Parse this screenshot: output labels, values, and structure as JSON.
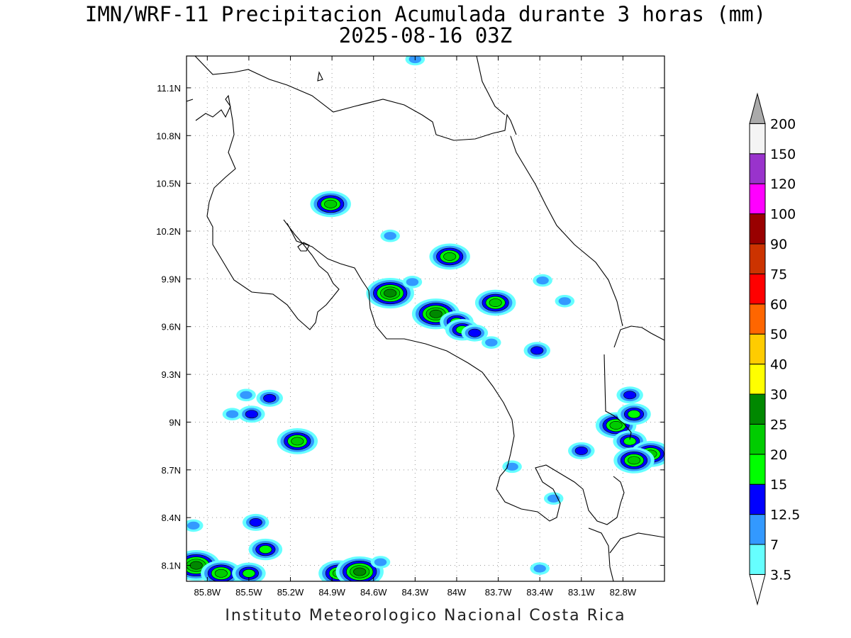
{
  "title": {
    "line1": "IMN/WRF-11 Precipitacion Acumulada durante 3 horas (mm)",
    "line2": "2025-08-16 03Z"
  },
  "footer": "Instituto Meteorologico Nacional Costa Rica",
  "axes": {
    "lon_ticks": [
      "85.8W",
      "85.5W",
      "85.2W",
      "84.9W",
      "84.6W",
      "84.3W",
      "84W",
      "83.7W",
      "83.4W",
      "83.1W",
      "82.8W"
    ],
    "lat_ticks": [
      "11.1N",
      "10.8N",
      "10.5N",
      "10.2N",
      "9.9N",
      "9.6N",
      "9.3N",
      "9N",
      "8.7N",
      "8.4N",
      "8.1N"
    ],
    "lon_values": [
      -85.8,
      -85.5,
      -85.2,
      -84.9,
      -84.6,
      -84.3,
      -84.0,
      -83.7,
      -83.4,
      -83.1,
      -82.8
    ],
    "lat_values": [
      11.1,
      10.8,
      10.5,
      10.2,
      9.9,
      9.6,
      9.3,
      9.0,
      8.7,
      8.4,
      8.1
    ],
    "lon_range": [
      -85.95,
      -82.5
    ],
    "lat_range": [
      8.0,
      11.3
    ],
    "grid": true
  },
  "legend": {
    "levels": [
      "3.5",
      "7",
      "12.5",
      "15",
      "20",
      "25",
      "30",
      "40",
      "50",
      "60",
      "75",
      "90",
      "100",
      "120",
      "150",
      "200"
    ],
    "colors": [
      "#66ffff",
      "#3399ff",
      "#0000ff",
      "#00ff00",
      "#00cc00",
      "#008800",
      "#ffff00",
      "#ffcc00",
      "#ff6600",
      "#ff0000",
      "#cc3300",
      "#990000",
      "#ff00ff",
      "#9933cc",
      "#f4f4f4",
      "#aaaaaa"
    ]
  },
  "precip_cells": [
    {
      "lon": -84.91,
      "lat": 10.37,
      "level": 4
    },
    {
      "lon": -84.05,
      "lat": 10.04,
      "level": 4
    },
    {
      "lon": -84.48,
      "lat": 9.81,
      "level": 5
    },
    {
      "lon": -84.15,
      "lat": 9.68,
      "level": 5
    },
    {
      "lon": -84.0,
      "lat": 9.63,
      "level": 3
    },
    {
      "lon": -83.96,
      "lat": 9.58,
      "level": 3
    },
    {
      "lon": -83.72,
      "lat": 9.75,
      "level": 4
    },
    {
      "lon": -83.42,
      "lat": 9.45,
      "level": 2
    },
    {
      "lon": -84.48,
      "lat": 10.17,
      "level": 1
    },
    {
      "lon": -84.32,
      "lat": 9.88,
      "level": 1
    },
    {
      "lon": -83.38,
      "lat": 9.89,
      "level": 1
    },
    {
      "lon": -83.22,
      "lat": 9.76,
      "level": 1
    },
    {
      "lon": -83.87,
      "lat": 9.56,
      "level": 2
    },
    {
      "lon": -83.75,
      "lat": 9.5,
      "level": 1
    },
    {
      "lon": -82.85,
      "lat": 8.98,
      "level": 4
    },
    {
      "lon": -82.72,
      "lat": 9.05,
      "level": 3
    },
    {
      "lon": -82.75,
      "lat": 9.17,
      "level": 2
    },
    {
      "lon": -82.75,
      "lat": 8.88,
      "level": 3
    },
    {
      "lon": -82.6,
      "lat": 8.8,
      "level": 4
    },
    {
      "lon": -82.72,
      "lat": 8.76,
      "level": 4
    },
    {
      "lon": -83.1,
      "lat": 8.82,
      "level": 2
    },
    {
      "lon": -85.15,
      "lat": 8.88,
      "level": 4
    },
    {
      "lon": -85.52,
      "lat": 9.17,
      "level": 1
    },
    {
      "lon": -85.35,
      "lat": 9.15,
      "level": 2
    },
    {
      "lon": -85.48,
      "lat": 9.05,
      "level": 2
    },
    {
      "lon": -85.62,
      "lat": 9.05,
      "level": 1
    },
    {
      "lon": -85.45,
      "lat": 8.37,
      "level": 2
    },
    {
      "lon": -85.38,
      "lat": 8.2,
      "level": 3
    },
    {
      "lon": -85.88,
      "lat": 8.1,
      "level": 5
    },
    {
      "lon": -85.7,
      "lat": 8.05,
      "level": 4
    },
    {
      "lon": -85.5,
      "lat": 8.05,
      "level": 3
    },
    {
      "lon": -84.85,
      "lat": 8.05,
      "level": 4
    },
    {
      "lon": -84.7,
      "lat": 8.06,
      "level": 5
    },
    {
      "lon": -84.55,
      "lat": 8.12,
      "level": 1
    },
    {
      "lon": -83.4,
      "lat": 8.08,
      "level": 1
    },
    {
      "lon": -83.6,
      "lat": 8.72,
      "level": 1
    },
    {
      "lon": -83.3,
      "lat": 8.52,
      "level": 1
    },
    {
      "lon": -84.3,
      "lat": 11.28,
      "level": 1
    },
    {
      "lon": -85.9,
      "lat": 8.35,
      "level": 1
    }
  ]
}
